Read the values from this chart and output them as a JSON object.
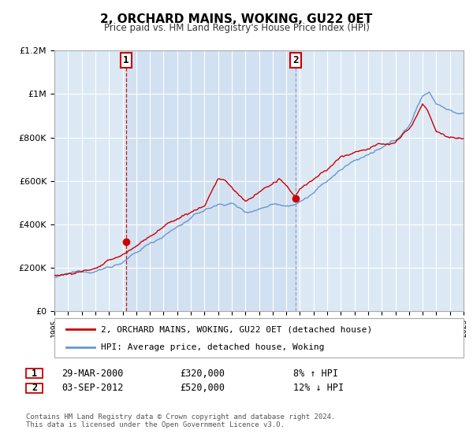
{
  "title": "2, ORCHARD MAINS, WOKING, GU22 0ET",
  "subtitle": "Price paid vs. HM Land Registry's House Price Index (HPI)",
  "legend_label_red": "2, ORCHARD MAINS, WOKING, GU22 0ET (detached house)",
  "legend_label_blue": "HPI: Average price, detached house, Woking",
  "footnote1": "Contains HM Land Registry data © Crown copyright and database right 2024.",
  "footnote2": "This data is licensed under the Open Government Licence v3.0.",
  "marker1_date": "29-MAR-2000",
  "marker1_price": "£320,000",
  "marker1_hpi": "8% ↑ HPI",
  "marker1_year": 2000.24,
  "marker1_value": 320000,
  "marker2_date": "03-SEP-2012",
  "marker2_price": "£520,000",
  "marker2_hpi": "12% ↓ HPI",
  "marker2_year": 2012.67,
  "marker2_value": 520000,
  "xlim": [
    1995,
    2025
  ],
  "ylim": [
    0,
    1200000
  ],
  "yticks": [
    0,
    200000,
    400000,
    600000,
    800000,
    1000000,
    1200000
  ],
  "ytick_labels": [
    "£0",
    "£200K",
    "£400K",
    "£600K",
    "£800K",
    "£1M",
    "£1.2M"
  ],
  "background_color": "#dce9f5",
  "red_color": "#cc0000",
  "blue_color": "#6699cc",
  "grid_color": "#ffffff",
  "shade_color": "#ccddf0"
}
